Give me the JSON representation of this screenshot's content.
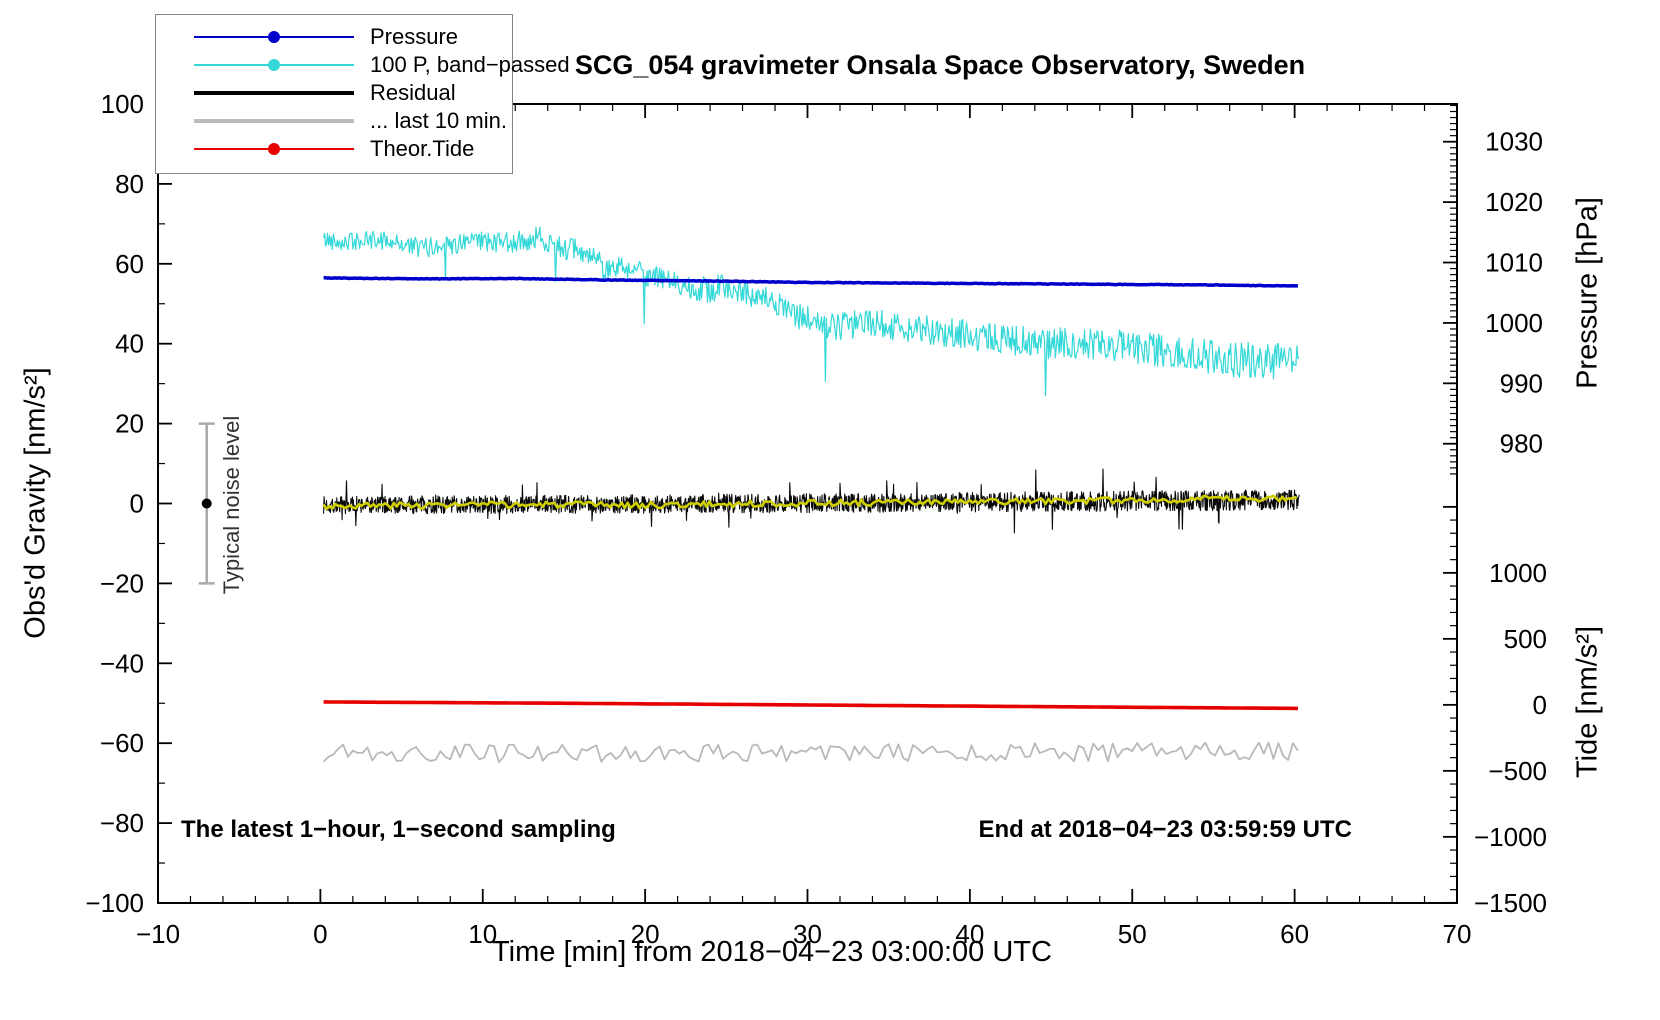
{
  "figure": {
    "title": "SCG_054 gravimeter Onsala Space Observatory, Sweden",
    "note_left": "The latest 1−hour, 1−second sampling",
    "note_right": "End at 2018−04−23 03:59:59 UTC"
  },
  "chart_data": {
    "type": "line",
    "title": "SCG_054 gravimeter Onsala Space Observatory, Sweden",
    "xlabel": "Time [min] from 2018−04−23 03:00:00 UTC",
    "ylabel_left": "Obs'd Gravity [nm/s²]",
    "ylabel_pressure": "Pressure [hPa]",
    "ylabel_tide": "Tide [nm/s²]",
    "grid": false,
    "legend_position": "top-left",
    "axes": {
      "x": {
        "range": [
          -10,
          70
        ],
        "major_ticks": [
          -10,
          0,
          10,
          20,
          30,
          40,
          50,
          60,
          70
        ],
        "minor_step": 2
      },
      "gravity": {
        "range": [
          -100,
          100
        ],
        "major_ticks": [
          -100,
          -80,
          -60,
          -40,
          -20,
          0,
          20,
          40,
          60,
          80,
          100
        ],
        "minor_step": 10
      },
      "pressure": {
        "major_ticks": [
          980,
          990,
          1000,
          1010,
          1020,
          1030
        ],
        "minor_step": 1,
        "minor_range": [
          975,
          1036
        ],
        "ref_value": 1000,
        "ref_gravity": 45.2,
        "gravity_per_unit": 1.512
      },
      "tide": {
        "major_ticks": [
          1000,
          500,
          0,
          -500,
          -1000,
          -1500
        ],
        "minor_step": 100,
        "minor_range": [
          -1500,
          1500
        ],
        "ref_value": 0,
        "ref_gravity": -50.4,
        "gravity_per_unit": 0.03304
      }
    },
    "legend": [
      {
        "label": "Pressure",
        "color": "#0000cc",
        "width": 2,
        "marker": true
      },
      {
        "label": "100 P, band−passed",
        "color": "#35d8d8",
        "width": 2,
        "marker": true
      },
      {
        "label": "Residual",
        "color": "#000000",
        "width": 4,
        "marker": false
      },
      {
        "label": "... last 10 min.",
        "color": "#bbbbbb",
        "width": 4,
        "marker": false
      },
      {
        "label": "Theor.Tide",
        "color": "#e60000",
        "width": 2,
        "marker": true
      }
    ],
    "noise_bar": {
      "x": -7,
      "center": 0,
      "half_range": 20,
      "label": "Typical noise level",
      "bar_color": "#aaaaaa",
      "dot_color": "#000000"
    },
    "series": [
      {
        "name": "band_passed",
        "label": "100 P, band−passed",
        "axis": "gravity",
        "color": "#35d8d8",
        "line_width": 1.2,
        "anchors": [
          [
            0.2,
            66
          ],
          [
            2,
            65.5
          ],
          [
            4,
            66
          ],
          [
            6,
            64
          ],
          [
            8,
            64.5
          ],
          [
            10,
            65.5
          ],
          [
            12,
            65.5
          ],
          [
            13.5,
            66.5
          ],
          [
            15,
            64
          ],
          [
            16,
            63
          ],
          [
            17,
            60.5
          ],
          [
            18,
            58.5
          ],
          [
            19,
            59.5
          ],
          [
            20,
            57.5
          ],
          [
            21,
            56
          ],
          [
            22,
            55.5
          ],
          [
            23,
            54
          ],
          [
            24,
            53.5
          ],
          [
            25,
            54.5
          ],
          [
            26,
            53
          ],
          [
            27,
            51.5
          ],
          [
            28,
            50
          ],
          [
            29,
            47.5
          ],
          [
            30,
            46
          ],
          [
            31,
            44.5
          ],
          [
            32,
            44
          ],
          [
            33,
            45
          ],
          [
            34,
            45.5
          ],
          [
            35,
            44.5
          ],
          [
            36,
            44
          ],
          [
            37,
            43.5
          ],
          [
            38,
            43
          ],
          [
            40,
            42
          ],
          [
            42,
            41
          ],
          [
            44,
            40.5
          ],
          [
            46,
            40
          ],
          [
            48,
            40
          ],
          [
            50,
            39
          ],
          [
            52,
            38
          ],
          [
            54,
            37
          ],
          [
            56,
            36
          ],
          [
            58,
            36
          ],
          [
            60.3,
            35
          ]
        ],
        "noise": {
          "step": 0.06,
          "amp": [
            2.3,
            4.6
          ],
          "seed": 42,
          "spike_prob": 0.01,
          "spike_range": [
            5,
            13
          ],
          "spike_sign": -1
        }
      },
      {
        "name": "residual",
        "label": "Residual",
        "axis": "gravity",
        "color": "#0a0a0a",
        "line_width": 1.1,
        "anchors": [
          [
            0.2,
            -0.4
          ],
          [
            15,
            -0.2
          ],
          [
            30,
            0.1
          ],
          [
            45,
            0.5
          ],
          [
            60.3,
            0.9
          ]
        ],
        "noise": {
          "step": 0.03,
          "amp": [
            2.2,
            2.6
          ],
          "seed": 7,
          "spike_prob": 0.02,
          "spike_range": [
            3,
            7
          ],
          "spike_sign": 0
        }
      },
      {
        "name": "residual_last_10_min",
        "label": "... last 10 min.",
        "axis": "gravity",
        "color": "#b9b9b9",
        "line_width": 1.8,
        "anchors": [
          [
            0.2,
            -62.6
          ],
          [
            20,
            -62.3
          ],
          [
            40,
            -62.4
          ],
          [
            60.3,
            -62.0
          ]
        ],
        "noise": {
          "step": 0.3,
          "amp": [
            2.3,
            2.3
          ],
          "seed": 19,
          "spike_prob": 0,
          "spike_range": [
            0,
            0
          ],
          "spike_sign": 0
        }
      },
      {
        "name": "theor_tide",
        "label": "Theor.Tide",
        "axis": "tide",
        "color": "#e60000",
        "line_width": 3.6,
        "anchors": [
          [
            0.2,
            22
          ],
          [
            15,
            12
          ],
          [
            30,
            -1
          ],
          [
            45,
            -14
          ],
          [
            60.3,
            -27
          ]
        ],
        "noise": {
          "step": 0.5,
          "amp": [
            0,
            0
          ],
          "seed": 1,
          "spike_prob": 0,
          "spike_range": [
            0,
            0
          ],
          "spike_sign": 0
        }
      },
      {
        "name": "residual_smoothed",
        "label": "",
        "axis": "gravity",
        "color": "#cfcf00",
        "line_width": 2.6,
        "anchors": [
          [
            0.2,
            -0.6
          ],
          [
            10,
            -0.3
          ],
          [
            20,
            -0.4
          ],
          [
            30,
            0.1
          ],
          [
            40,
            0.4
          ],
          [
            48,
            0.7
          ],
          [
            55,
            1.1
          ],
          [
            60.3,
            1.3
          ]
        ],
        "noise": {
          "step": 0.18,
          "amp": [
            0.8,
            0.8
          ],
          "seed": 3,
          "spike_prob": 0,
          "spike_range": [
            0,
            0
          ],
          "spike_sign": 0
        }
      },
      {
        "name": "pressure",
        "label": "Pressure",
        "axis": "pressure",
        "color": "#0000cc",
        "line_width": 3.5,
        "anchors": [
          [
            0.2,
            1007.45
          ],
          [
            6,
            1007.3
          ],
          [
            12,
            1007.35
          ],
          [
            18,
            1007.1
          ],
          [
            24,
            1006.95
          ],
          [
            30,
            1006.7
          ],
          [
            36,
            1006.6
          ],
          [
            42,
            1006.5
          ],
          [
            48,
            1006.4
          ],
          [
            54,
            1006.3
          ],
          [
            60.3,
            1006.1
          ]
        ],
        "noise": {
          "step": 0.12,
          "amp": [
            0.05,
            0.05
          ],
          "seed": 5,
          "spike_prob": 0,
          "spike_range": [
            0,
            0
          ],
          "spike_sign": 0
        }
      }
    ]
  }
}
